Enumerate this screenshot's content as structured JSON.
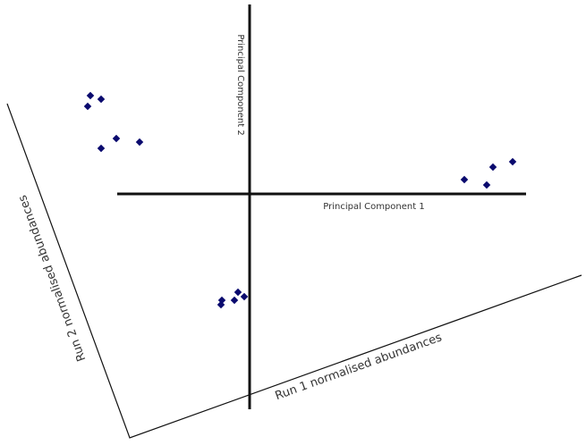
{
  "axes": {
    "pc1": "Principal Component 1",
    "pc2": "Principal Component 2",
    "run1": "Run 1 normalised abundances",
    "run2": "Run 2 normalised abundances"
  }
}
